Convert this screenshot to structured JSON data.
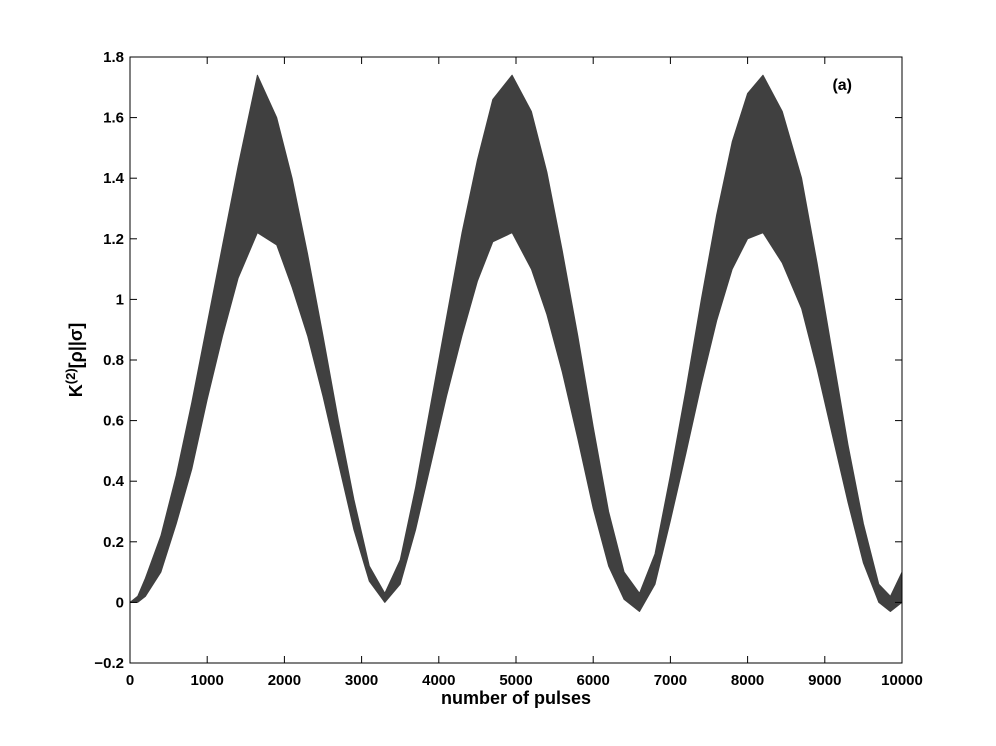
{
  "chart_data": {
    "type": "area",
    "panel_label": "(a)",
    "xlabel": "number of pulses",
    "ylabel": "K",
    "ylabel_superscript": "(2)",
    "ylabel_suffix": "[ρ||σ]",
    "xlim": [
      0,
      10000
    ],
    "ylim": [
      -0.2,
      1.8
    ],
    "x_ticks": [
      0,
      1000,
      2000,
      3000,
      4000,
      5000,
      6000,
      7000,
      8000,
      9000,
      10000
    ],
    "x_tick_labels": [
      "0",
      "1000",
      "2000",
      "3000",
      "4000",
      "5000",
      "6000",
      "7000",
      "8000",
      "9000",
      "10000"
    ],
    "y_ticks": [
      -0.2,
      0,
      0.2,
      0.4,
      0.6,
      0.8,
      1,
      1.2,
      1.4,
      1.6,
      1.8
    ],
    "y_tick_labels": [
      "−0.2",
      "0",
      "0.2",
      "0.4",
      "0.6",
      "0.8",
      "1",
      "1.2",
      "1.4",
      "1.6",
      "1.8"
    ],
    "grid": false,
    "band_color": "#404040",
    "series": [
      {
        "x": [
          0,
          100,
          200,
          400,
          600,
          800,
          1000,
          1200,
          1400,
          1650,
          1900,
          2100,
          2300,
          2500,
          2700,
          2900,
          3100,
          3300,
          3500,
          3700,
          3900,
          4100,
          4300,
          4500,
          4700,
          4950,
          5200,
          5400,
          5600,
          5800,
          6000,
          6200,
          6400,
          6600,
          6800,
          7000,
          7200,
          7400,
          7600,
          7800,
          8000,
          8200,
          8450,
          8700,
          8900,
          9100,
          9300,
          9500,
          9700,
          9850,
          10000
        ],
        "lower": [
          0.0,
          0.0,
          0.02,
          0.1,
          0.26,
          0.44,
          0.67,
          0.88,
          1.07,
          1.22,
          1.18,
          1.04,
          0.88,
          0.68,
          0.46,
          0.24,
          0.07,
          0.0,
          0.06,
          0.24,
          0.46,
          0.68,
          0.88,
          1.06,
          1.19,
          1.22,
          1.1,
          0.95,
          0.76,
          0.54,
          0.31,
          0.12,
          0.01,
          -0.03,
          0.06,
          0.27,
          0.49,
          0.72,
          0.93,
          1.1,
          1.2,
          1.22,
          1.12,
          0.97,
          0.77,
          0.55,
          0.33,
          0.13,
          0.0,
          -0.03,
          0.0
        ],
        "upper": [
          0.0,
          0.02,
          0.08,
          0.22,
          0.42,
          0.66,
          0.92,
          1.18,
          1.44,
          1.74,
          1.6,
          1.4,
          1.15,
          0.88,
          0.6,
          0.34,
          0.12,
          0.03,
          0.14,
          0.38,
          0.66,
          0.94,
          1.22,
          1.46,
          1.66,
          1.74,
          1.62,
          1.42,
          1.16,
          0.88,
          0.58,
          0.3,
          0.1,
          0.03,
          0.16,
          0.42,
          0.7,
          1.0,
          1.28,
          1.52,
          1.68,
          1.74,
          1.62,
          1.4,
          1.12,
          0.82,
          0.52,
          0.26,
          0.06,
          0.02,
          0.1
        ]
      }
    ]
  }
}
